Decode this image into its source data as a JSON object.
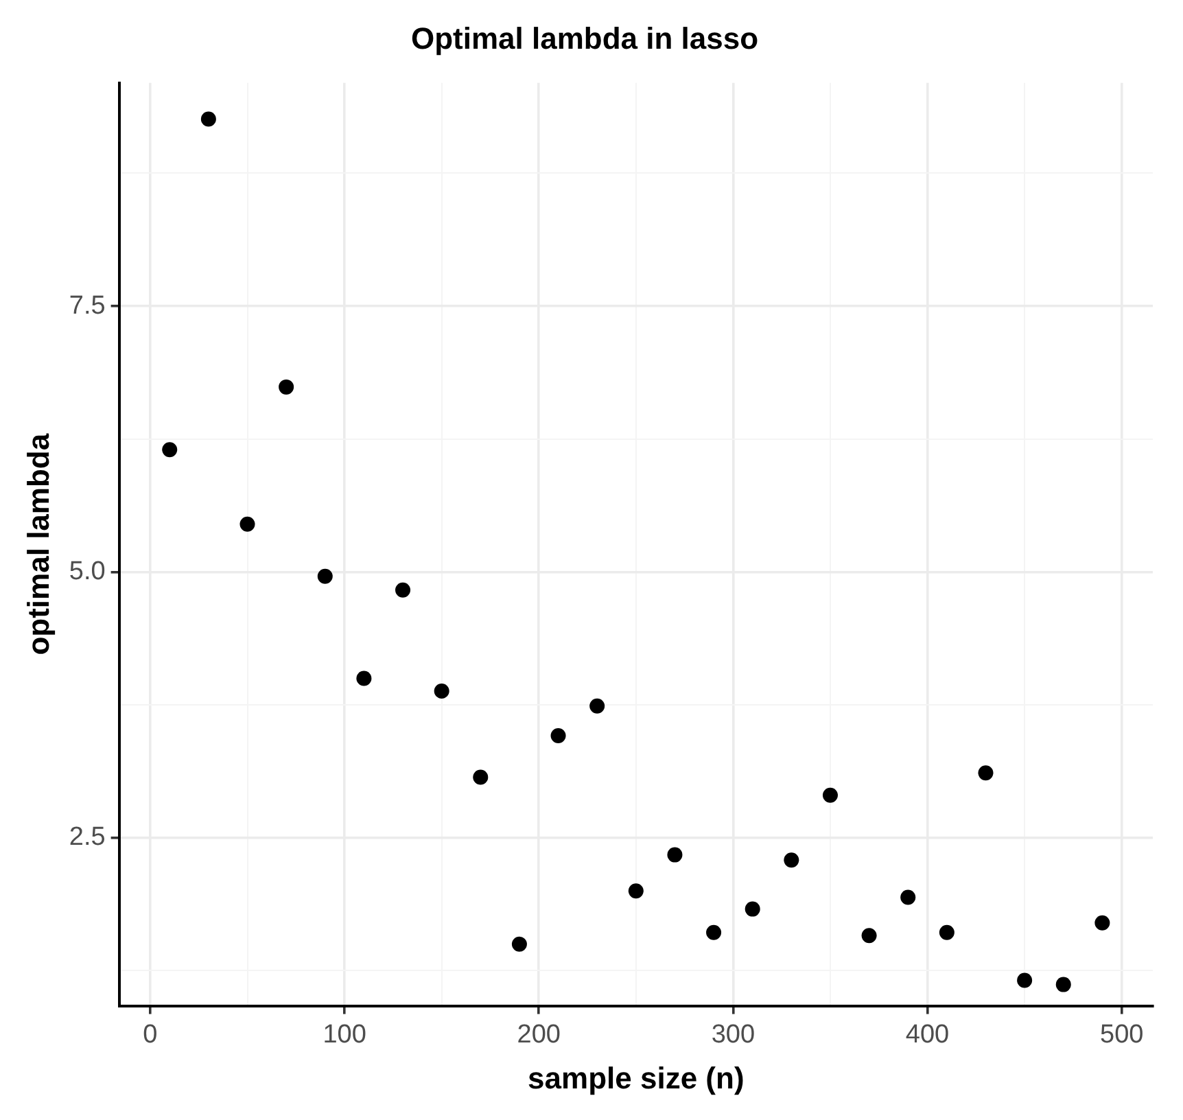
{
  "chart_data": {
    "type": "scatter",
    "title": "Optimal lambda in lasso",
    "xlabel": "sample size (n)",
    "ylabel": "optimal lambda",
    "x": [
      10,
      30,
      50,
      70,
      90,
      110,
      130,
      150,
      170,
      190,
      210,
      230,
      250,
      270,
      290,
      310,
      330,
      350,
      370,
      390,
      410,
      430,
      450,
      470,
      490
    ],
    "series": [
      {
        "color": "#000000",
        "values": [
          6.15,
          9.26,
          5.45,
          6.74,
          4.96,
          4.0,
          4.83,
          3.88,
          3.07,
          1.5,
          3.46,
          3.74,
          2.0,
          2.34,
          1.61,
          1.83,
          2.29,
          2.9,
          1.58,
          1.94,
          1.61,
          3.11,
          1.16,
          1.12,
          1.7
        ]
      }
    ],
    "xlim": [
      -16,
      516
    ],
    "ylim": [
      0.92,
      9.6
    ],
    "xticks": [
      0,
      {
        "value": 50,
        "label": null
      },
      100,
      {
        "value": 150,
        "label": null
      },
      200,
      {
        "value": 250,
        "label": null
      },
      300,
      {
        "value": 350,
        "label": null
      },
      400,
      {
        "value": 450,
        "label": null
      },
      500
    ],
    "yticks": [
      {
        "value": 1.25,
        "label": null
      },
      2.5,
      {
        "value": 3.75,
        "label": null
      },
      {
        "value": 5,
        "label": "5.0"
      },
      {
        "value": 6.25,
        "label": null
      },
      7.5,
      {
        "value": 8.75,
        "label": null
      }
    ],
    "grid": true,
    "legend": false,
    "marker": "circle"
  }
}
